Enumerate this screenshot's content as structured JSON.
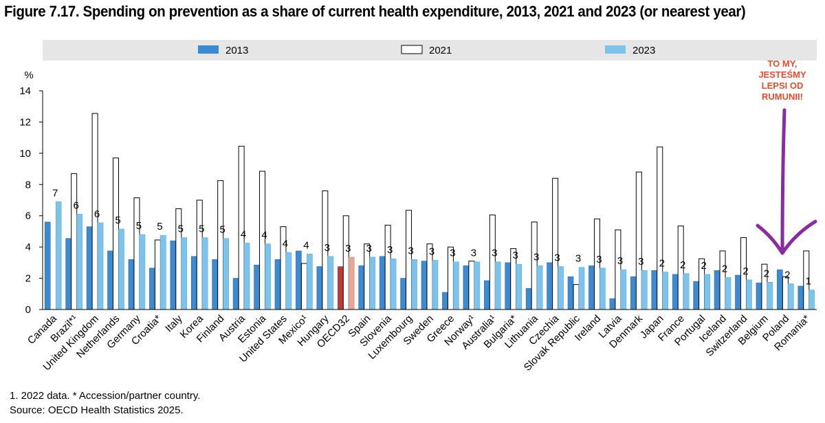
{
  "title": "Figure 7.17. Spending on prevention as a share of current health expenditure, 2013, 2021 and 2023 (or nearest year)",
  "footnote": "1.  2022 data. * Accession/partner country.",
  "source": "Source: OECD Health Statistics 2025.",
  "chart_data": {
    "type": "bar",
    "ylabel": "%",
    "ylim": [
      0,
      14
    ],
    "yticks": [
      0,
      2,
      4,
      6,
      8,
      10,
      12,
      14
    ],
    "grid": false,
    "legend_position": "top",
    "categories": [
      "Canada",
      "Brazil*¹",
      "United Kingdom",
      "Netherlands",
      "Germany",
      "Croatia*",
      "Italy",
      "Korea",
      "Finland",
      "Austria",
      "Estonia",
      "United States",
      "Mexico¹",
      "Hungary",
      "OECD32",
      "Spain",
      "Slovenia",
      "Luxembourg",
      "Sweden",
      "Greece",
      "Norway¹",
      "Australia¹",
      "Bulgaria*",
      "Lithuania",
      "Czechia",
      "Slovak Republic",
      "Ireland",
      "Latvia",
      "Denmark",
      "Japan",
      "France",
      "Portugal",
      "Iceland",
      "Switzerland",
      "Belgium",
      "Poland",
      "Romania*"
    ],
    "series": [
      {
        "name": "2013",
        "color": "#3c8ad1",
        "values": [
          5.6,
          4.55,
          5.3,
          3.75,
          3.2,
          2.65,
          4.4,
          3.4,
          3.2,
          2.0,
          2.85,
          3.2,
          3.75,
          2.75,
          2.75,
          2.8,
          3.4,
          2.0,
          3.1,
          1.1,
          2.8,
          1.85,
          3.0,
          1.35,
          3.0,
          2.1,
          2.8,
          0.7,
          2.1,
          2.5,
          2.25,
          1.8,
          2.5,
          2.2,
          1.7,
          2.55,
          1.5
        ]
      },
      {
        "name": "2021",
        "color": "#ffffff",
        "values": [
          null,
          8.7,
          12.55,
          9.7,
          7.15,
          4.45,
          6.45,
          7.0,
          8.25,
          10.45,
          8.85,
          5.3,
          2.95,
          7.6,
          6.0,
          4.2,
          5.4,
          6.35,
          4.2,
          4.0,
          3.1,
          6.05,
          3.9,
          5.6,
          8.4,
          1.6,
          5.8,
          5.1,
          8.8,
          10.4,
          5.35,
          3.25,
          3.75,
          4.6,
          2.9,
          2.1,
          3.75
        ]
      },
      {
        "name": "2023",
        "color": "#7dc3eb",
        "values": [
          6.9,
          6.1,
          5.55,
          5.15,
          4.8,
          4.75,
          4.6,
          4.6,
          4.55,
          4.25,
          4.2,
          3.65,
          3.55,
          3.4,
          3.35,
          3.35,
          3.25,
          3.2,
          3.15,
          3.05,
          3.05,
          3.05,
          2.9,
          2.8,
          2.75,
          2.7,
          2.65,
          2.55,
          2.5,
          2.4,
          2.3,
          2.25,
          2.05,
          1.9,
          1.75,
          1.65,
          1.25
        ]
      }
    ],
    "highlight": {
      "category": "OECD32",
      "colors": {
        "2013": "#c8382f",
        "2023": "#f2a38a"
      }
    },
    "data_labels": [
      "7",
      "6",
      "6",
      "5",
      "5",
      "5",
      "5",
      "5",
      "5",
      "4",
      "4",
      "4",
      "4",
      "3",
      "3",
      "3",
      "3",
      "3",
      "3",
      "3",
      "3",
      "3",
      "3",
      "3",
      "3",
      "3",
      "3",
      "3",
      "3",
      "2",
      "2",
      "2",
      "2",
      "2",
      "2",
      "2",
      "1"
    ],
    "annotation": {
      "lines": [
        "TO MY,",
        "JESTEŚMY",
        "LEPSI OD",
        "RUMUNII!"
      ],
      "color": "#e84c2b",
      "arrow_color": "#8a2aa5",
      "points_to": "Poland"
    }
  }
}
